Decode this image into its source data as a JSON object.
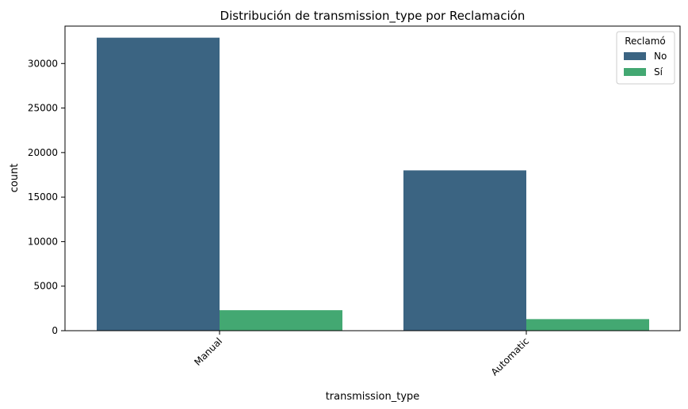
{
  "chart_data": {
    "type": "bar",
    "title": "Distribución de transmission_type por Reclamación",
    "xlabel": "transmission_type",
    "ylabel": "count",
    "categories": [
      "Manual",
      "Automatic"
    ],
    "series": [
      {
        "name": "No",
        "values": [
          32900,
          18000
        ],
        "color": "#3b6482"
      },
      {
        "name": "Sí",
        "values": [
          2300,
          1300
        ],
        "color": "#43a872"
      }
    ],
    "ylim": [
      0,
      34200
    ],
    "yticks": [
      0,
      5000,
      10000,
      15000,
      20000,
      25000,
      30000
    ],
    "legend": {
      "title": "Reclamó",
      "placement": "top-right"
    },
    "grid": false
  }
}
